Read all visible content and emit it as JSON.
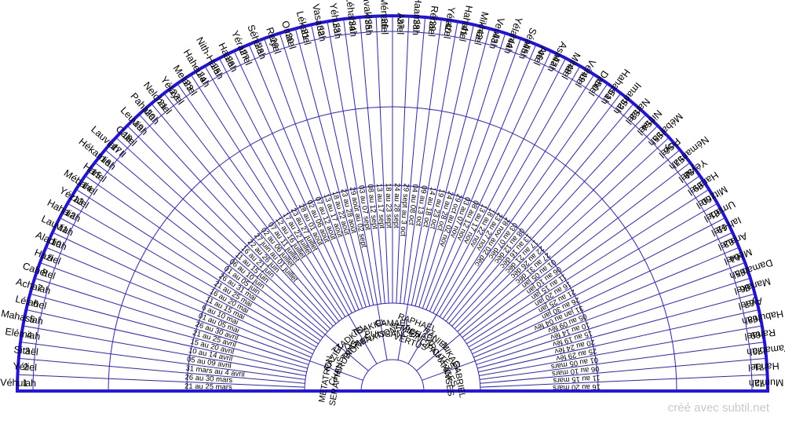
{
  "credit": "créé avec subtil.net",
  "colors": {
    "line": "#2a22d6",
    "rim": "#1f12e0",
    "text": "#000000"
  },
  "angels": [
    {
      "n": "1",
      "name": "Véhuiah",
      "dates": "21 au 25 mars"
    },
    {
      "n": "2",
      "name": "Yéliel",
      "dates": "26 au 30 mars"
    },
    {
      "n": "3",
      "name": "Sitaël",
      "dates": "31 mars au 4 avril"
    },
    {
      "n": "4",
      "name": "Elémiah",
      "dates": "05 au 09 avril"
    },
    {
      "n": "5",
      "name": "Mahasiah",
      "dates": "10 au 14 avril"
    },
    {
      "n": "6",
      "name": "Lélahel",
      "dates": "15 au 20 avril"
    },
    {
      "n": "7",
      "name": "Achaiah",
      "dates": "21 au 25 avril"
    },
    {
      "n": "8",
      "name": "Cahétel",
      "dates": "26 au 30 avril"
    },
    {
      "n": "9",
      "name": "Haziel",
      "dates": "01 au 05 mai"
    },
    {
      "n": "10",
      "name": "Aladiah",
      "dates": "6 au 10 mai"
    },
    {
      "n": "11",
      "name": "Lauviah",
      "dates": "11 au 15 mai"
    },
    {
      "n": "12",
      "name": "Hahaiah",
      "dates": "16 au 20 mai"
    },
    {
      "n": "13",
      "name": "Yézalel",
      "dates": "21 au 25 mai"
    },
    {
      "n": "14",
      "name": "Mébahel",
      "dates": "26 au 31 mai"
    },
    {
      "n": "15",
      "name": "Hariel",
      "dates": "01 au 05 juin"
    },
    {
      "n": "16",
      "name": "Hékamiah",
      "dates": "06 au 10 juin"
    },
    {
      "n": "17",
      "name": "Lauviah II",
      "dates": "11 au 15 juin"
    },
    {
      "n": "18",
      "name": "Caliel",
      "dates": "16 au 21 juin"
    },
    {
      "n": "19",
      "name": "Leuviah",
      "dates": "22 au 26 juin"
    },
    {
      "n": "20",
      "name": "Pahaliah",
      "dates": "27 juin au 01 juillet"
    },
    {
      "n": "21",
      "name": "Nelchael",
      "dates": "02 au 06 juillet"
    },
    {
      "n": "22",
      "name": "Yéiayel",
      "dates": "07 au 11 juillet"
    },
    {
      "n": "23",
      "name": "Melahel",
      "dates": "12 au 16 juillet"
    },
    {
      "n": "24",
      "name": "Haheuiah",
      "dates": "17 au 22 juillet"
    },
    {
      "n": "25",
      "name": "Nith-Haiah",
      "dates": "23 au 27 juillet"
    },
    {
      "n": "26",
      "name": "Haaiah",
      "dates": "28 au 01 août"
    },
    {
      "n": "27",
      "name": "Yérathel",
      "dates": "02 au 06 août"
    },
    {
      "n": "28",
      "name": "Séhéiah",
      "dates": "07 au 12 août"
    },
    {
      "n": "29",
      "name": "Reiyel",
      "dates": "13 au 17 août"
    },
    {
      "n": "30",
      "name": "Omael",
      "dates": "18 au 22 août"
    },
    {
      "n": "31",
      "name": "Lékabel",
      "dates": "23 au 28 août"
    },
    {
      "n": "32",
      "name": "Vasariah",
      "dates": "29 août au 02 sept"
    },
    {
      "n": "33",
      "name": "Yéhuiah",
      "dates": "03 au 07 sept"
    },
    {
      "n": "34",
      "name": "Léhahiah",
      "dates": "08 au 12 sept"
    },
    {
      "n": "35",
      "name": "Khavakhiah",
      "dates": "13 au 17 sept"
    },
    {
      "n": "36",
      "name": "Ménadel",
      "dates": "18 au 23 sept"
    },
    {
      "n": "37",
      "name": "Aniel",
      "dates": "24 au 28 sept"
    },
    {
      "n": "38",
      "name": "Haamiah",
      "dates": "29 sept au 3 oct"
    },
    {
      "n": "39",
      "name": "Réhael",
      "dates": "04 au 08 oct"
    },
    {
      "n": "40",
      "name": "Yéiazel",
      "dates": "09 au 13 oct"
    },
    {
      "n": "41",
      "name": "Hahahel",
      "dates": "14 au 18 oct"
    },
    {
      "n": "42",
      "name": "Mikhael",
      "dates": "19 au 23 oct"
    },
    {
      "n": "43",
      "name": "Veuliah",
      "dates": "24 au 28 oct"
    },
    {
      "n": "44",
      "name": "Yélahiah",
      "dates": "29 oct au 02 nov"
    },
    {
      "n": "45",
      "name": "Séaliah",
      "dates": "03 au 07 nov"
    },
    {
      "n": "46",
      "name": "Ariel",
      "dates": "08 au 12 nov"
    },
    {
      "n": "47",
      "name": "Asaliah",
      "dates": "13 au 17 nov"
    },
    {
      "n": "48",
      "name": "Mihael",
      "dates": "18 au 22 nov"
    },
    {
      "n": "49",
      "name": "Véhuel",
      "dates": "23 au 27 nov"
    },
    {
      "n": "50",
      "name": "Daniel",
      "dates": "28 nov au 02 déc"
    },
    {
      "n": "51",
      "name": "Hahasiah",
      "dates": "03 au 07 déc"
    },
    {
      "n": "52",
      "name": "Imamiah",
      "dates": "08 au 12 déc"
    },
    {
      "n": "53",
      "name": "Nanael",
      "dates": "13 au 16 déc"
    },
    {
      "n": "54",
      "name": "Nithael",
      "dates": "17 au 21 déc"
    },
    {
      "n": "55",
      "name": "Mébahiah",
      "dates": "22 au 26 déc"
    },
    {
      "n": "56",
      "name": "Poyel",
      "dates": "27 au 31 déc"
    },
    {
      "n": "57",
      "name": "Némamiah",
      "dates": "01 au 05 jan"
    },
    {
      "n": "58",
      "name": "Yéyalel",
      "dates": "06 au 10 jan"
    },
    {
      "n": "59",
      "name": "Harahel",
      "dates": "11 au 15 jan"
    },
    {
      "n": "60",
      "name": "Mitzrael",
      "dates": "16 au 20 jan"
    },
    {
      "n": "61",
      "name": "Umabel",
      "dates": "21 au 25 jan"
    },
    {
      "n": "62",
      "name": "Iah-Hel",
      "dates": "26 au 30 jan"
    },
    {
      "n": "63",
      "name": "Anauel",
      "dates": "31 jan au 04 fév"
    },
    {
      "n": "64",
      "name": "Méhiel",
      "dates": "05 au 09 fév"
    },
    {
      "n": "65",
      "name": "Damabiah",
      "dates": "10 au 14 fév"
    },
    {
      "n": "66",
      "name": "Manakel",
      "dates": "15 au 19 fév"
    },
    {
      "n": "67",
      "name": "Ayael",
      "dates": "20 au 24 fév"
    },
    {
      "n": "68",
      "name": "Habuhiah",
      "dates": "25 au 29 fév"
    },
    {
      "n": "69",
      "name": "Rahael",
      "dates": "01 au 05 mars"
    },
    {
      "n": "70",
      "name": "Yamabiah",
      "dates": "06 au 10 mars"
    },
    {
      "n": "71",
      "name": "Hahael",
      "dates": "11 au 15 mars"
    },
    {
      "n": "72",
      "name": "Mumiah",
      "dates": "16 au 20 mars"
    }
  ],
  "choirs": [
    {
      "archangel": "METATRON",
      "choir": "SERAPHINS"
    },
    {
      "archangel": "RAZIEL",
      "choir": "CHERUBINS"
    },
    {
      "archangel": "TZADKIEL",
      "choir": "TRÔNES"
    },
    {
      "archangel": "TSAKIEL",
      "choir": "DOMINATIONS"
    },
    {
      "archangel": "CAMAEL",
      "choir": "PUISSANCES"
    },
    {
      "archangel": "RAPHAËL",
      "choir": "et MICHAËL",
      "extra": "VERTUS"
    },
    {
      "archangel": "HANIEL",
      "choir": "PRINCIPAUTÉS"
    },
    {
      "archangel": "MIKAEL",
      "choir": "ARCHANGES"
    },
    {
      "archangel": "GABRIEL",
      "choir": "ANGES"
    }
  ]
}
